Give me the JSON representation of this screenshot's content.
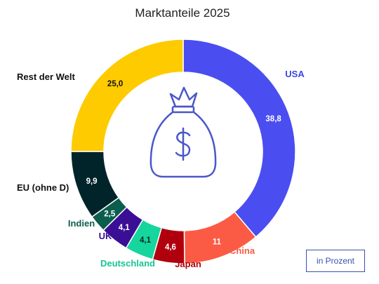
{
  "chart_data": {
    "type": "pie",
    "title": "Marktanteile 2025",
    "unit_label": "in Prozent",
    "slices": [
      {
        "label": "USA",
        "value": 38.8,
        "value_label": "38,8",
        "color": "#4a4ef0",
        "label_color": "#3f44e0",
        "value_color": "#ffffff"
      },
      {
        "label": "China",
        "value": 11,
        "value_label": "11",
        "color": "#fb5b44",
        "label_color": "#fb5b44",
        "value_color": "#ffffff"
      },
      {
        "label": "Japan",
        "value": 4.6,
        "value_label": "4,6",
        "color": "#b0000e",
        "label_color": "#b0000e",
        "value_color": "#ffffff"
      },
      {
        "label": "Deutschland",
        "value": 4.1,
        "value_label": "4,1",
        "color": "#16d59d",
        "label_color": "#16c592",
        "value_color": "#0a2b22"
      },
      {
        "label": "UK",
        "value": 4.1,
        "value_label": "4,1",
        "color": "#3b0e96",
        "label_color": "#3b0e96",
        "value_color": "#ffffff"
      },
      {
        "label": "Indien",
        "value": 2.5,
        "value_label": "2,5",
        "color": "#0b5e4d",
        "label_color": "#0b5e4d",
        "value_color": "#ffffff"
      },
      {
        "label": "EU (ohne D)",
        "value": 9.9,
        "value_label": "9,9",
        "color": "#01242b",
        "label_color": "#111111",
        "value_color": "#ffffff"
      },
      {
        "label": "Rest der Welt",
        "value": 25.0,
        "value_label": "25,0",
        "color": "#fdcb00",
        "label_color": "#111111",
        "value_color": "#111111"
      }
    ],
    "center_icon": "money-bag-dollar-icon",
    "icon_color": "#4a57c8",
    "legend": "none"
  }
}
